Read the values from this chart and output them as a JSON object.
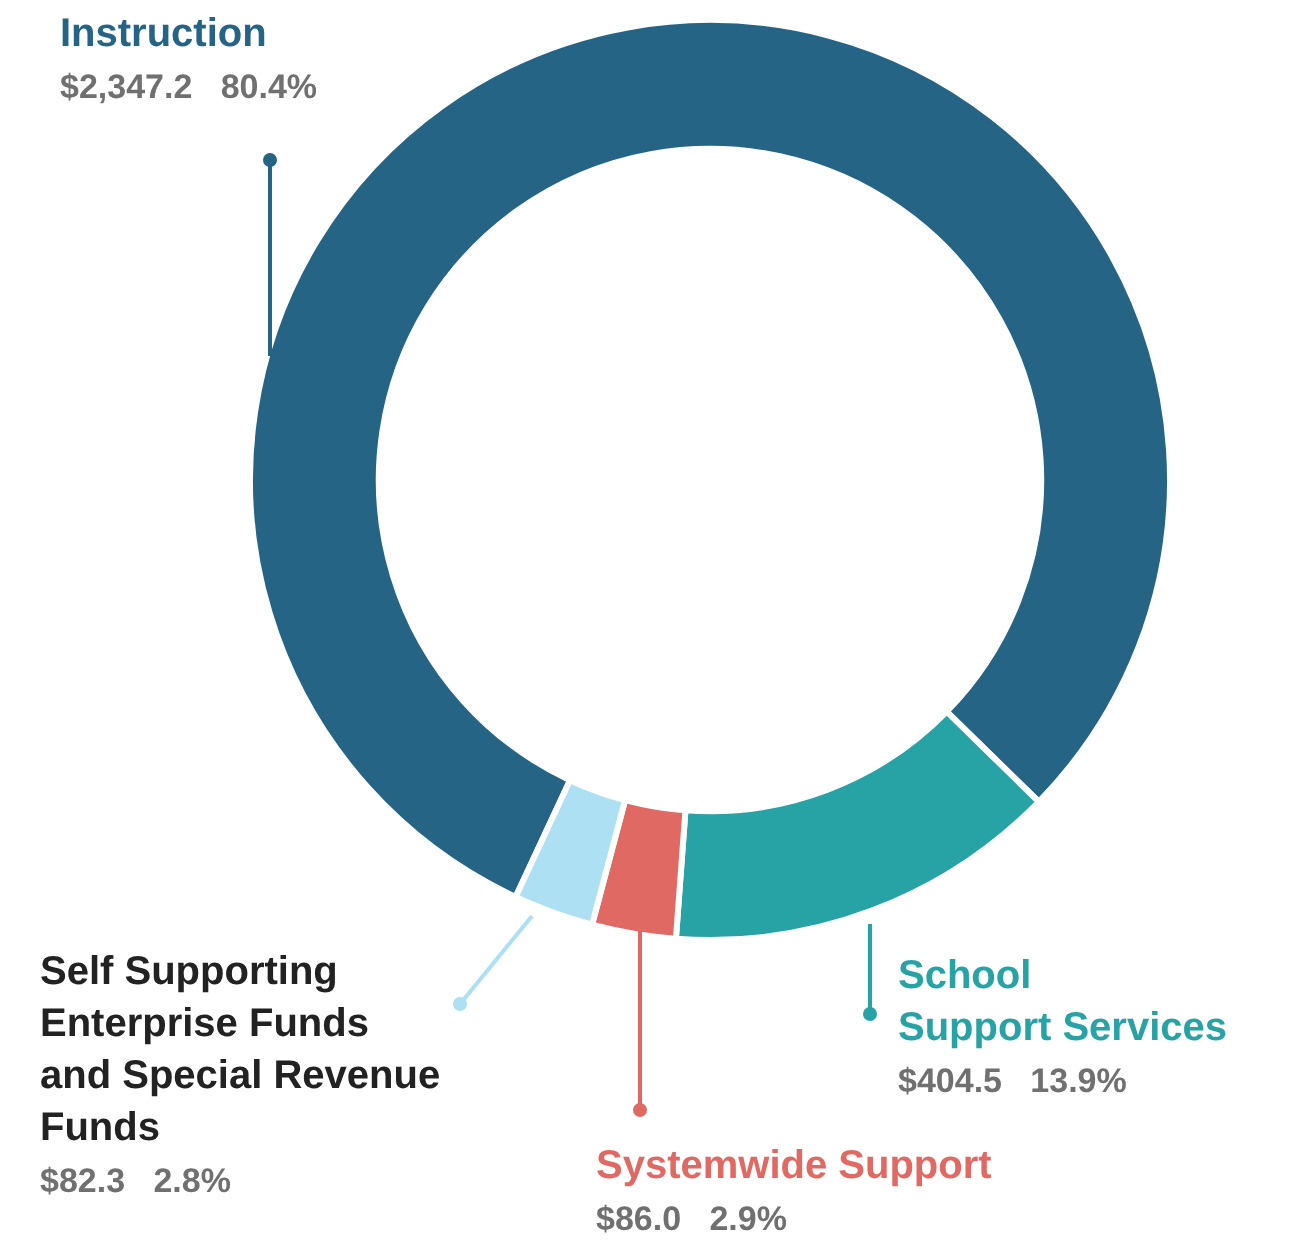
{
  "chart_data": {
    "type": "donut",
    "categories": [
      "Instruction",
      "School\nSupport Services",
      "Systemwide Support",
      "Self Supporting\nEnterprise Funds\nand Special Revenue\nFunds"
    ],
    "values": [
      2347.2,
      404.5,
      86.0,
      82.3
    ],
    "colors": [
      "#256485",
      "#27a3a6",
      "#e06a63",
      "#aee0f4"
    ],
    "value_labels": [
      "$2,347.2  80.4%",
      "$404.5  13.9%",
      "$86.0  2.9%",
      "$82.3  2.8%"
    ]
  }
}
